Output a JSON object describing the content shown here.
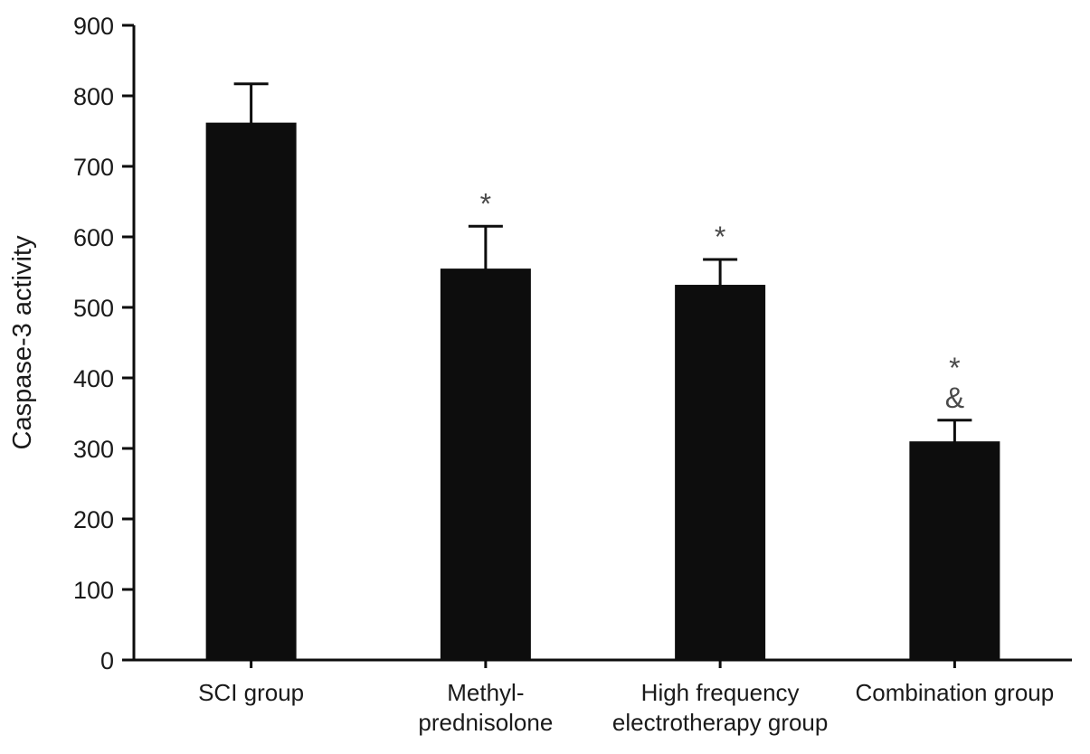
{
  "figure": {
    "description_label": "Caspase-3 activity bar chart"
  },
  "chart_data": {
    "type": "bar",
    "title": "",
    "xlabel": "",
    "ylabel": "Caspase-3 activity",
    "ylim": [
      0,
      900
    ],
    "ytick_step": 100,
    "grid": false,
    "legend": "none",
    "categories": [
      "SCI group",
      "Methyl-prednisolone",
      "High frequency electrotherapy group",
      "Combination group"
    ],
    "category_label_lines": [
      [
        "SCI group"
      ],
      [
        "Methyl-",
        "prednisolone"
      ],
      [
        "High frequency",
        "electrotherapy group"
      ],
      [
        "Combination group"
      ]
    ],
    "values": [
      762,
      555,
      532,
      310
    ],
    "errors_plus": [
      55,
      60,
      36,
      30
    ],
    "annotations": [
      [],
      [
        "*"
      ],
      [
        "*"
      ],
      [
        "*",
        "&"
      ]
    ],
    "bar_color": "#0d0d0d",
    "axis_color": "#0d0d0d",
    "text_color": "#1a1a1a",
    "annotation_color": "#4a4a4a"
  }
}
